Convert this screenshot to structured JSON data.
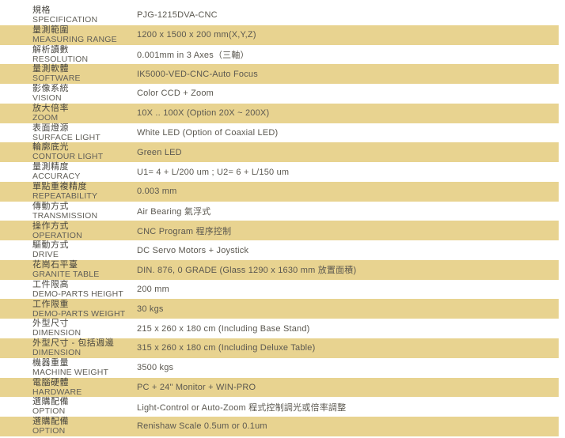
{
  "document": {
    "type": "product-specification-sheet",
    "colors": {
      "stripe": "#e8d390",
      "background": "#ffffff",
      "label_zh_text": "#47453f",
      "label_en_text": "#615f58",
      "value_text": "#5b5850"
    }
  },
  "table": {
    "rows": [
      {
        "zh": "規格",
        "en": "SPECIFICATION",
        "value": "PJG-1215DVA-CNC"
      },
      {
        "zh": "量測範圍",
        "en": "MEASURING RANGE",
        "value": "1200 x 1500 x 200 mm(X,Y,Z)"
      },
      {
        "zh": "解析讀數",
        "en": "RESOLUTION",
        "value": "0.001mm in 3 Axes（三軸）"
      },
      {
        "zh": "量測軟體",
        "en": "SOFTWARE",
        "value": "IK5000-VED-CNC-Auto Focus"
      },
      {
        "zh": "影像系統",
        "en": "VISION",
        "value": "Color CCD + Zoom"
      },
      {
        "zh": "放大倍率",
        "en": "ZOOM",
        "value": "10X .. 100X (Option 20X ~ 200X)"
      },
      {
        "zh": "表面燈源",
        "en": "SURFACE LIGHT",
        "value": "White LED (Option of Coaxial LED)"
      },
      {
        "zh": "輪廓底光",
        "en": "CONTOUR LIGHT",
        "value": "Green LED"
      },
      {
        "zh": "量測精度",
        "en": "ACCURACY",
        "value": "U1= 4 + L/200 um ; U2= 6 + L/150 um"
      },
      {
        "zh": "單點重複精度",
        "en": "REPEATABILITY",
        "value": "0.003 mm"
      },
      {
        "zh": "傳動方式",
        "en": "TRANSMISSION",
        "value": "Air Bearing 氣浮式"
      },
      {
        "zh": "操作方式",
        "en": "OPERATION",
        "value": "CNC Program 程序控制"
      },
      {
        "zh": "驅動方式",
        "en": "DRIVE",
        "value": "DC Servo Motors + Joystick"
      },
      {
        "zh": "花崗石平臺",
        "en": "GRANITE TABLE",
        "value": "DIN. 876, 0 GRADE (Glass 1290 x 1630 mm 放置面積)"
      },
      {
        "zh": "工件限高",
        "en": "DEMO-PARTS HEIGHT",
        "value": "200 mm"
      },
      {
        "zh": "工作限重",
        "en": "DEMO-PARTS WEIGHT",
        "value": "30 kgs"
      },
      {
        "zh": "外型尺寸",
        "en": "DIMENSION",
        "value": "215 x 260 x 180 cm  (Including Base Stand)"
      },
      {
        "zh": "外型尺寸 - 包括週邊",
        "en": "DIMENSION",
        "value": "315 x 260 x 180 cm (Including Deluxe Table)"
      },
      {
        "zh": "機器重量",
        "en": "MACHINE WEIGHT",
        "value": "3500 kgs"
      },
      {
        "zh": "電腦硬體",
        "en": "HARDWARE",
        "value": "PC + 24\" Monitor + WIN-PRO"
      },
      {
        "zh": "選購配備",
        "en": "OPTION",
        "value": "Light-Control or Auto-Zoom 程式控制調光或倍率調整"
      },
      {
        "zh": "選購配備",
        "en": "OPTION",
        "value": "Renishaw Scale 0.5um or 0.1um"
      }
    ]
  }
}
